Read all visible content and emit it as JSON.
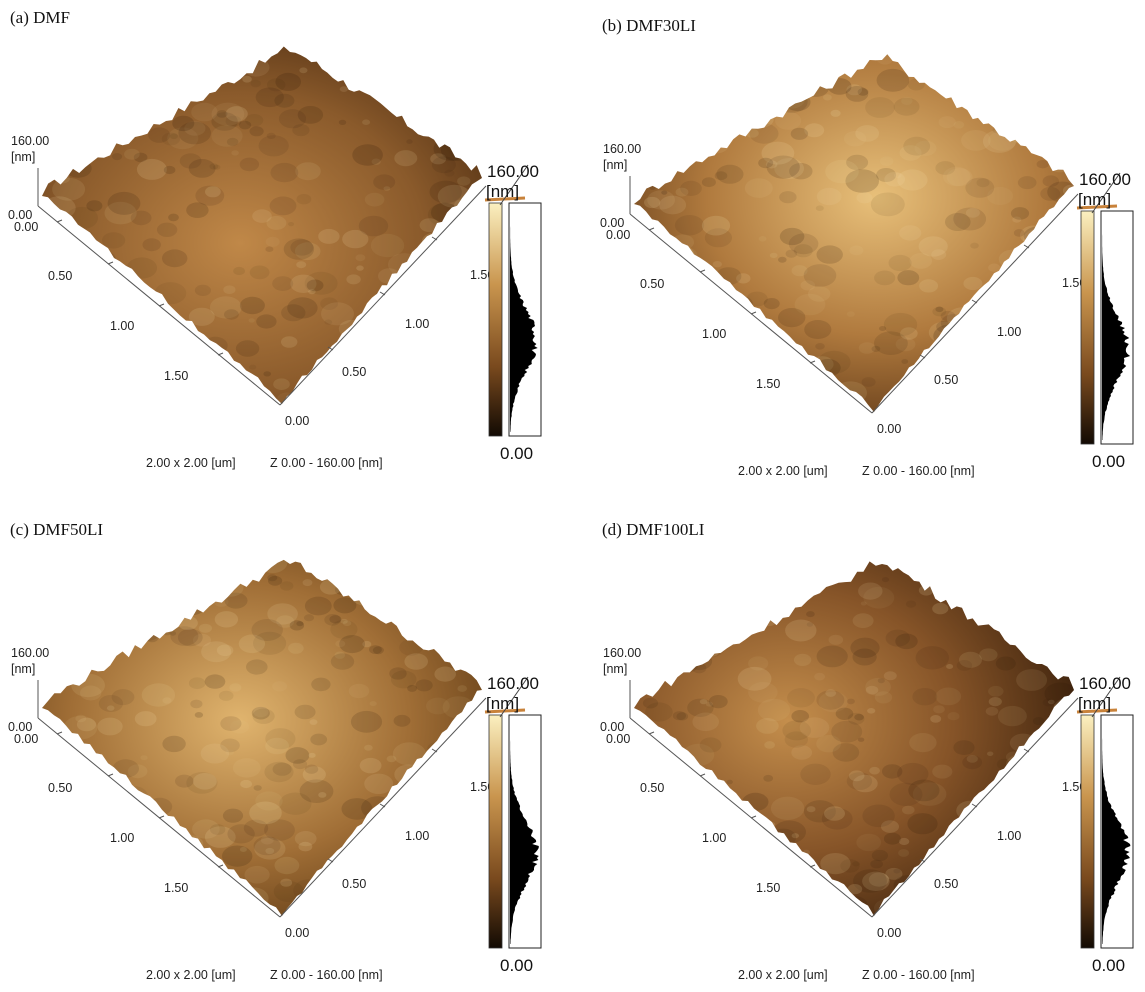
{
  "panels": [
    {
      "caption": "(a) DMF",
      "z_label": "160.00",
      "z_unit": "[nm]",
      "z_zero": "0.00",
      "y_ticks": [
        "0.00",
        "0.50",
        "1.00",
        "1.50"
      ],
      "y_end": "0.00",
      "x_ticks": [
        "0.50",
        "1.00",
        "1.50"
      ],
      "scale_max": "160.00",
      "scale_unit": "[nm]",
      "scale_min": "0.00",
      "footer_size": "2.00 x 2.00 [um]",
      "footer_z": "Z  0.00  -  160.00 [nm]",
      "surface_tone": "#8a5a2b"
    },
    {
      "caption": "(b) DMF30LI",
      "z_label": "160.00",
      "z_unit": "[nm]",
      "z_zero": "0.00",
      "y_ticks": [
        "0.00",
        "0.50",
        "1.00",
        "1.50"
      ],
      "y_end": "0.00",
      "x_ticks": [
        "0.50",
        "1.00",
        "1.50"
      ],
      "scale_max": "160.00",
      "scale_unit": "[nm]",
      "scale_min": "0.00",
      "footer_size": "2.00 x 2.00 [um]",
      "footer_z": "Z  0.00  -  160.00 [nm]",
      "surface_tone": "#a8743c"
    },
    {
      "caption": "(c) DMF50LI",
      "z_label": "160.00",
      "z_unit": "[nm]",
      "z_zero": "0.00",
      "y_ticks": [
        "0.00",
        "0.50",
        "1.00",
        "1.50"
      ],
      "y_end": "0.00",
      "x_ticks": [
        "0.50",
        "1.00",
        "1.50"
      ],
      "scale_max": "160.00",
      "scale_unit": "[nm]",
      "scale_min": "0.00",
      "footer_size": "2.00 x 2.00 [um]",
      "footer_z": "Z  0.00  -  160.00 [nm]",
      "surface_tone": "#9e6c36"
    },
    {
      "caption": "(d) DMF100LI",
      "z_label": "160.00",
      "z_unit": "[nm]",
      "z_zero": "0.00",
      "y_ticks": [
        "0.00",
        "0.50",
        "1.00",
        "1.50"
      ],
      "y_end": "0.00",
      "x_ticks": [
        "0.50",
        "1.00",
        "1.50"
      ],
      "scale_max": "160.00",
      "scale_unit": "[nm]",
      "scale_min": "0.00",
      "footer_size": "2.00 x 2.00 [um]",
      "footer_z": "Z  0.00  -  160.00 [nm]",
      "surface_tone": "#7e4f24"
    }
  ],
  "colors": {
    "surface_dark": "#2a1606",
    "surface_light": "#f1dca8",
    "scale_top": "#fbf0c0",
    "scale_bottom": "#120a03"
  }
}
